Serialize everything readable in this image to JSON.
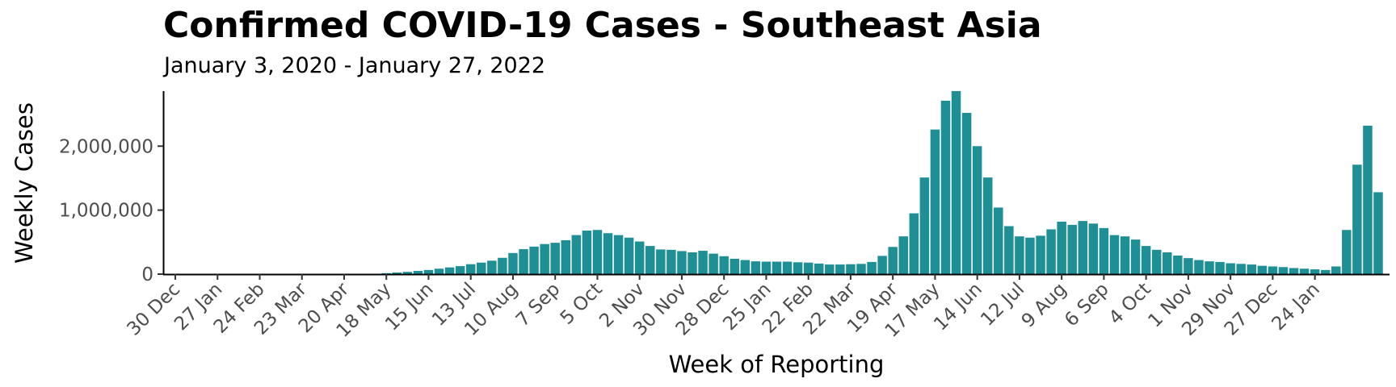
{
  "chart_data": {
    "type": "bar",
    "title": "Confirmed COVID-19 Cases - Southeast Asia",
    "subtitle": "January 3, 2020 - January 27, 2022",
    "xlabel": "Week of Reporting",
    "ylabel": "Weekly Cases",
    "x_tick_labels": [
      "30 Dec",
      "27 Jan",
      "24 Feb",
      "23 Mar",
      "20 Apr",
      "18 May",
      "15 Jun",
      "13 Jul",
      "10 Aug",
      "7 Sep",
      "5 Oct",
      "2 Nov",
      "30 Nov",
      "28 Dec",
      "25 Jan",
      "22 Feb",
      "22 Mar",
      "19 Apr",
      "17 May",
      "14 Jun",
      "12 Jul",
      "9 Aug",
      "6 Sep",
      "4 Oct",
      "1 Nov",
      "29 Nov",
      "27 Dec",
      "24 Jan"
    ],
    "y_ticks": [
      0,
      1000000,
      2000000
    ],
    "y_tick_labels": [
      "0",
      "1,000,000",
      "2,000,000"
    ],
    "ylim": [
      0,
      2860000
    ],
    "bar_color": "#1f8f96",
    "grid": false,
    "weekly_cases": [
      0,
      0,
      0,
      0,
      0,
      0,
      0,
      0,
      0,
      0,
      0,
      0,
      0,
      0,
      0,
      0,
      0,
      0,
      0,
      5000,
      15000,
      25000,
      35000,
      50000,
      65000,
      85000,
      105000,
      125000,
      155000,
      180000,
      210000,
      255000,
      330000,
      390000,
      430000,
      470000,
      490000,
      530000,
      610000,
      680000,
      690000,
      640000,
      610000,
      570000,
      510000,
      440000,
      385000,
      380000,
      360000,
      340000,
      365000,
      320000,
      280000,
      240000,
      220000,
      200000,
      195000,
      195000,
      195000,
      185000,
      180000,
      165000,
      150000,
      150000,
      155000,
      160000,
      190000,
      285000,
      425000,
      590000,
      950000,
      1510000,
      2260000,
      2710000,
      2860000,
      2520000,
      2000000,
      1510000,
      1040000,
      750000,
      590000,
      570000,
      600000,
      700000,
      820000,
      770000,
      830000,
      790000,
      720000,
      610000,
      590000,
      540000,
      440000,
      380000,
      340000,
      290000,
      250000,
      220000,
      200000,
      190000,
      170000,
      160000,
      150000,
      130000,
      120000,
      110000,
      95000,
      85000,
      75000,
      65000,
      120000,
      690000,
      1710000,
      2320000,
      1280000
    ]
  }
}
